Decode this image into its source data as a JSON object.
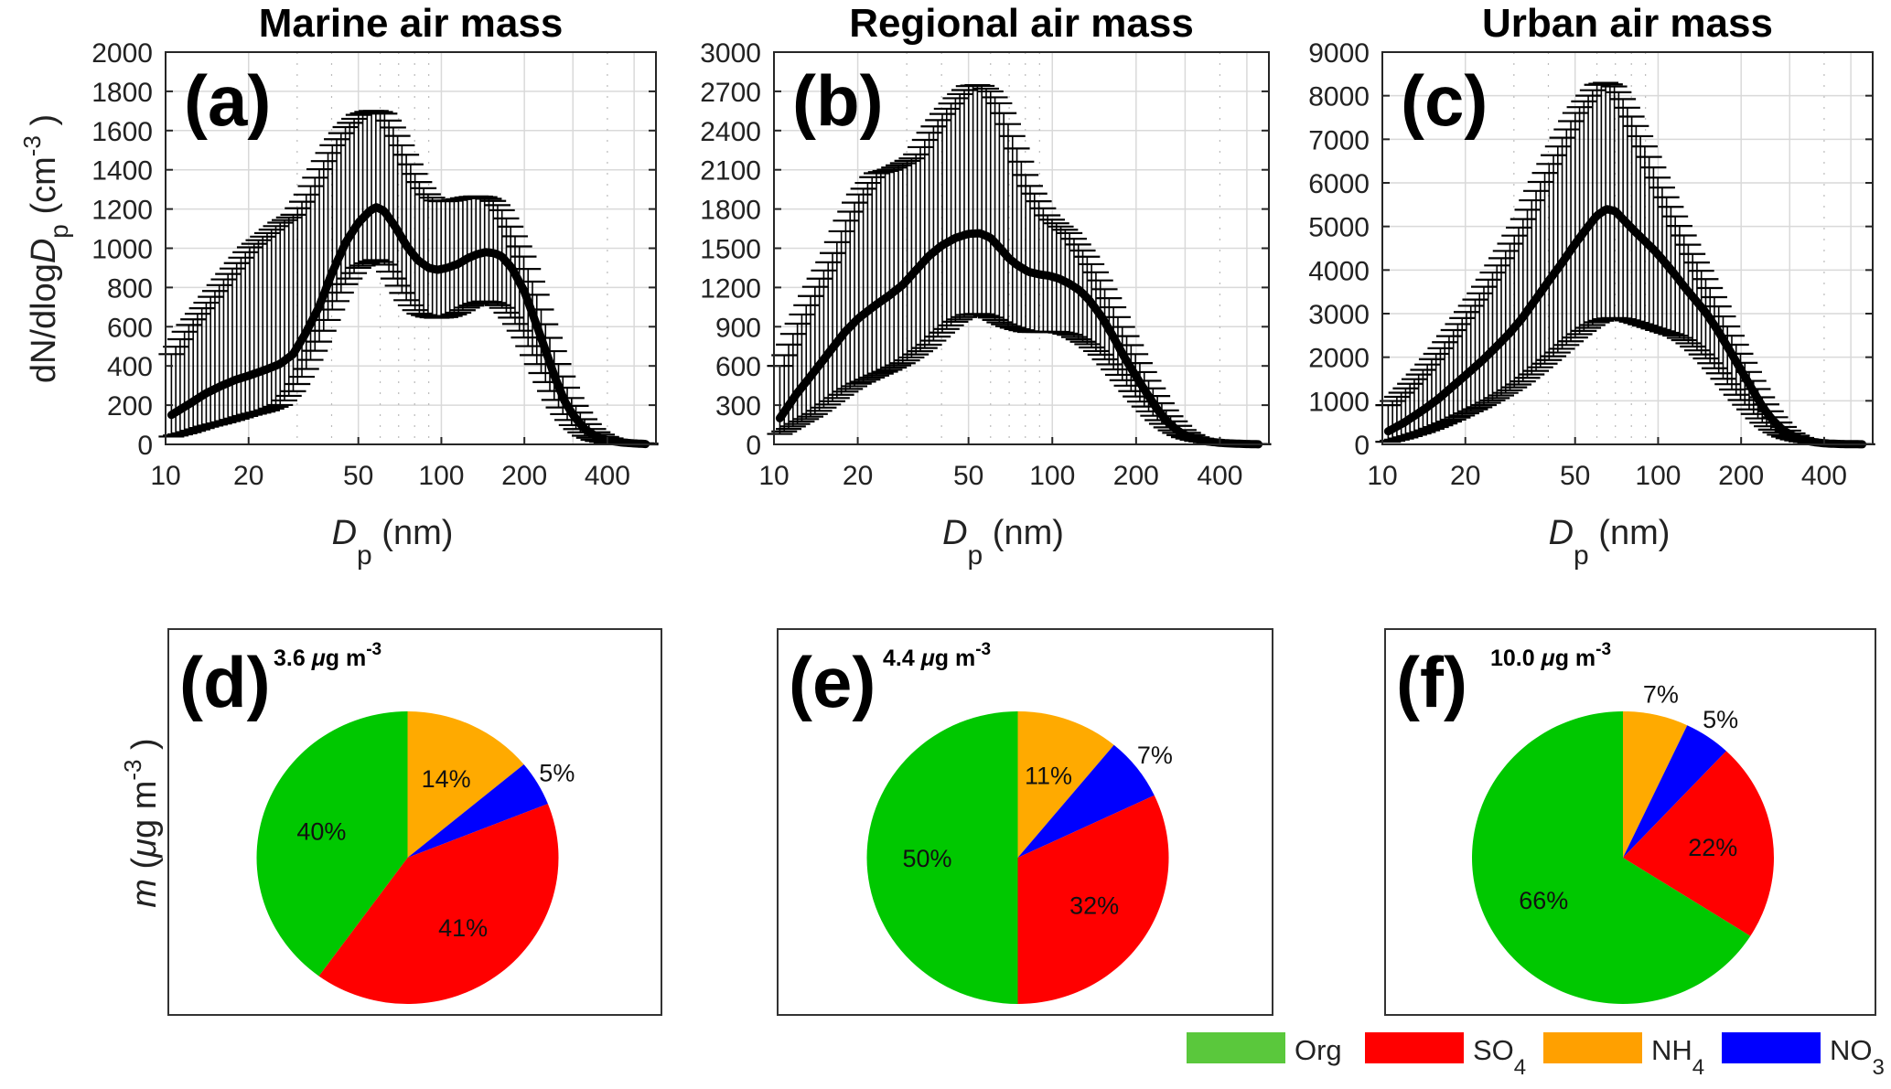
{
  "chart_data": [
    {
      "id": "a",
      "type": "line",
      "title": "Marine air mass",
      "panel_label": "(a)",
      "xlabel": "Dp (nm)",
      "ylabel": "dN/dlogDp (cm-3)",
      "xscale": "log",
      "xlim": [
        10,
        600
      ],
      "ylim": [
        0,
        2000
      ],
      "xticks": [
        10,
        20,
        50,
        100,
        200,
        400
      ],
      "yticks": [
        0,
        200,
        400,
        600,
        800,
        1000,
        1200,
        1400,
        1600,
        1800,
        2000
      ],
      "grid": true,
      "series": [
        {
          "name": "mean",
          "x": [
            10.5,
            12,
            14,
            16,
            18,
            20,
            23,
            26,
            29,
            32,
            36,
            40,
            45,
            50,
            55,
            58,
            62,
            68,
            75,
            82,
            90,
            97,
            105,
            115,
            125,
            135,
            145,
            155,
            165,
            180,
            200,
            220,
            240,
            260,
            280,
            300,
            330,
            360,
            400,
            450,
            500,
            550
          ],
          "y": [
            150,
            200,
            260,
            300,
            330,
            350,
            380,
            410,
            460,
            560,
            700,
            870,
            1030,
            1130,
            1190,
            1210,
            1190,
            1110,
            1010,
            940,
            900,
            890,
            900,
            920,
            950,
            970,
            980,
            975,
            960,
            900,
            780,
            620,
            470,
            330,
            220,
            150,
            80,
            45,
            20,
            10,
            5,
            2
          ]
        },
        {
          "name": "upper",
          "x": [
            10.5,
            12,
            14,
            16,
            18,
            20,
            23,
            26,
            29,
            32,
            36,
            40,
            45,
            50,
            55,
            58,
            62,
            68,
            75,
            82,
            90,
            97,
            105,
            115,
            125,
            135,
            145,
            155,
            165,
            180,
            200,
            220,
            240,
            260,
            280,
            300,
            330,
            360,
            400,
            450,
            500,
            550
          ],
          "y": [
            460,
            600,
            720,
            830,
            920,
            1000,
            1070,
            1130,
            1170,
            1260,
            1400,
            1520,
            1620,
            1680,
            1700,
            1700,
            1690,
            1600,
            1470,
            1350,
            1270,
            1240,
            1240,
            1250,
            1260,
            1265,
            1260,
            1240,
            1200,
            1100,
            950,
            780,
            600,
            450,
            320,
            220,
            130,
            70,
            35,
            15,
            8,
            4
          ]
        },
        {
          "name": "lower",
          "x": [
            10.5,
            12,
            14,
            16,
            18,
            20,
            23,
            26,
            29,
            32,
            36,
            40,
            45,
            50,
            55,
            58,
            62,
            68,
            75,
            82,
            90,
            97,
            105,
            115,
            125,
            135,
            145,
            155,
            165,
            180,
            200,
            220,
            240,
            260,
            280,
            300,
            330,
            360,
            400,
            450,
            500,
            550
          ],
          "y": [
            40,
            60,
            90,
            110,
            130,
            150,
            170,
            200,
            270,
            370,
            520,
            680,
            820,
            900,
            930,
            940,
            920,
            830,
            730,
            670,
            650,
            645,
            650,
            670,
            700,
            720,
            730,
            720,
            700,
            640,
            540,
            420,
            310,
            210,
            140,
            90,
            45,
            20,
            8,
            3,
            1,
            0
          ]
        }
      ]
    },
    {
      "id": "b",
      "type": "line",
      "title": "Regional air mass",
      "panel_label": "(b)",
      "xlabel": "Dp (nm)",
      "ylabel": "",
      "xscale": "log",
      "xlim": [
        10,
        600
      ],
      "ylim": [
        0,
        3000
      ],
      "xticks": [
        10,
        20,
        50,
        100,
        200,
        400
      ],
      "yticks": [
        0,
        300,
        600,
        900,
        1200,
        1500,
        1800,
        2100,
        2400,
        2700,
        3000
      ],
      "grid": true,
      "series": [
        {
          "name": "mean",
          "x": [
            10.5,
            12,
            14,
            16,
            18,
            20,
            23,
            26,
            29,
            32,
            36,
            40,
            45,
            50,
            55,
            60,
            65,
            70,
            75,
            82,
            90,
            97,
            105,
            115,
            125,
            135,
            150,
            165,
            180,
            200,
            220,
            240,
            260,
            280,
            300,
            330,
            360,
            400,
            450,
            500,
            550
          ],
          "y": [
            200,
            380,
            560,
            720,
            860,
            960,
            1060,
            1140,
            1220,
            1320,
            1440,
            1520,
            1580,
            1610,
            1615,
            1580,
            1500,
            1420,
            1370,
            1320,
            1300,
            1290,
            1270,
            1230,
            1180,
            1110,
            980,
            830,
            680,
            520,
            380,
            260,
            170,
            110,
            70,
            40,
            22,
            12,
            6,
            3,
            1
          ]
        },
        {
          "name": "upper",
          "x": [
            10.5,
            12,
            14,
            16,
            18,
            20,
            23,
            26,
            29,
            32,
            36,
            40,
            45,
            50,
            55,
            60,
            65,
            70,
            75,
            82,
            90,
            97,
            105,
            115,
            125,
            135,
            150,
            165,
            180,
            200,
            220,
            240,
            260,
            280,
            300,
            330,
            360,
            400,
            450,
            500,
            550
          ],
          "y": [
            600,
            900,
            1200,
            1430,
            1700,
            1900,
            2070,
            2100,
            2150,
            2200,
            2380,
            2520,
            2650,
            2740,
            2750,
            2700,
            2600,
            2430,
            2250,
            2000,
            1850,
            1740,
            1680,
            1620,
            1520,
            1420,
            1240,
            1060,
            880,
            680,
            500,
            360,
            240,
            160,
            100,
            55,
            30,
            15,
            7,
            3,
            1
          ]
        },
        {
          "name": "lower",
          "x": [
            10.5,
            12,
            14,
            16,
            18,
            20,
            23,
            26,
            29,
            32,
            36,
            40,
            45,
            50,
            55,
            60,
            65,
            70,
            75,
            82,
            90,
            97,
            105,
            115,
            125,
            135,
            150,
            165,
            180,
            200,
            220,
            240,
            260,
            280,
            300,
            330,
            360,
            400,
            450,
            500,
            550
          ],
          "y": [
            80,
            150,
            230,
            320,
            400,
            460,
            520,
            570,
            620,
            680,
            760,
            850,
            940,
            990,
            1000,
            970,
            930,
            900,
            880,
            860,
            860,
            860,
            860,
            840,
            800,
            760,
            680,
            580,
            480,
            360,
            260,
            180,
            120,
            80,
            50,
            28,
            15,
            8,
            4,
            2,
            1
          ]
        }
      ]
    },
    {
      "id": "c",
      "type": "line",
      "title": "Urban air mass",
      "panel_label": "(c)",
      "xlabel": "Dp (nm)",
      "ylabel": "",
      "xscale": "log",
      "xlim": [
        10,
        600
      ],
      "ylim": [
        0,
        9000
      ],
      "xticks": [
        10,
        20,
        50,
        100,
        200,
        400
      ],
      "yticks": [
        0,
        1000,
        2000,
        3000,
        4000,
        5000,
        6000,
        7000,
        8000,
        9000
      ],
      "grid": true,
      "series": [
        {
          "name": "mean",
          "x": [
            10.5,
            12,
            14,
            16,
            18,
            20,
            23,
            26,
            29,
            32,
            36,
            40,
            45,
            50,
            55,
            60,
            65,
            70,
            75,
            82,
            90,
            97,
            105,
            115,
            125,
            135,
            150,
            165,
            180,
            200,
            220,
            240,
            260,
            280,
            300,
            330,
            360,
            400,
            450,
            500,
            550
          ],
          "y": [
            300,
            500,
            780,
            1050,
            1330,
            1580,
            1920,
            2250,
            2560,
            2880,
            3330,
            3740,
            4180,
            4600,
            4950,
            5250,
            5400,
            5350,
            5150,
            4900,
            4650,
            4450,
            4200,
            3900,
            3600,
            3350,
            3000,
            2600,
            2200,
            1700,
            1250,
            850,
            560,
            360,
            230,
            120,
            60,
            25,
            10,
            5,
            2
          ]
        },
        {
          "name": "upper",
          "x": [
            10.5,
            12,
            14,
            16,
            18,
            20,
            23,
            26,
            29,
            32,
            36,
            40,
            45,
            50,
            55,
            60,
            65,
            70,
            75,
            82,
            90,
            97,
            105,
            115,
            125,
            135,
            150,
            165,
            180,
            200,
            220,
            240,
            260,
            280,
            300,
            330,
            360,
            400,
            450,
            500,
            550
          ],
          "y": [
            900,
            1250,
            1700,
            2150,
            2600,
            3000,
            3550,
            4100,
            4600,
            5100,
            5800,
            6400,
            7050,
            7600,
            7950,
            8250,
            8300,
            8200,
            7900,
            7400,
            6800,
            6300,
            5800,
            5250,
            4750,
            4300,
            3750,
            3200,
            2650,
            2050,
            1500,
            1050,
            700,
            450,
            290,
            150,
            75,
            30,
            12,
            5,
            2
          ]
        },
        {
          "name": "lower",
          "x": [
            10.5,
            12,
            14,
            16,
            18,
            20,
            23,
            26,
            29,
            32,
            36,
            40,
            45,
            50,
            55,
            60,
            65,
            70,
            75,
            82,
            90,
            97,
            105,
            115,
            125,
            135,
            150,
            165,
            180,
            200,
            220,
            240,
            260,
            280,
            300,
            330,
            360,
            400,
            450,
            500,
            550
          ],
          "y": [
            60,
            150,
            280,
            420,
            560,
            700,
            880,
            1060,
            1240,
            1420,
            1680,
            1920,
            2200,
            2450,
            2650,
            2800,
            2880,
            2900,
            2870,
            2800,
            2720,
            2650,
            2580,
            2500,
            2380,
            2220,
            1950,
            1650,
            1350,
            1000,
            720,
            480,
            310,
            200,
            130,
            70,
            35,
            15,
            6,
            2,
            1
          ]
        }
      ]
    },
    {
      "id": "d",
      "type": "pie",
      "panel_label": "(d)",
      "total": "3.6 μg m-3",
      "total_value": 3.6,
      "ylabel": "m (μg m-3)",
      "start": "top",
      "direction": "clockwise",
      "slices": [
        {
          "name": "NH4",
          "value": 14,
          "label": "14%"
        },
        {
          "name": "NO3",
          "value": 5,
          "label": "5%"
        },
        {
          "name": "SO4",
          "value": 41,
          "label": "41%"
        },
        {
          "name": "Org",
          "value": 40,
          "label": "40%"
        }
      ]
    },
    {
      "id": "e",
      "type": "pie",
      "panel_label": "(e)",
      "total": "4.4 μg m-3",
      "total_value": 4.4,
      "start": "top",
      "direction": "clockwise",
      "slices": [
        {
          "name": "NH4",
          "value": 11,
          "label": "11%"
        },
        {
          "name": "NO3",
          "value": 7,
          "label": "7%"
        },
        {
          "name": "SO4",
          "value": 32,
          "label": "32%"
        },
        {
          "name": "Org",
          "value": 50,
          "label": "50%"
        }
      ]
    },
    {
      "id": "f",
      "type": "pie",
      "panel_label": "(f)",
      "total": "10.0 μg m-3",
      "total_value": 10.0,
      "start": "top",
      "direction": "clockwise",
      "slices": [
        {
          "name": "NH4",
          "value": 7,
          "label": "7%"
        },
        {
          "name": "NO3",
          "value": 5,
          "label": "5%"
        },
        {
          "name": "SO4",
          "value": 22,
          "label": "22%"
        },
        {
          "name": "Org",
          "value": 66,
          "label": "66%"
        }
      ]
    }
  ],
  "labels": {
    "ylabel_top": {
      "pre": "dN/dlog",
      "italic1": "N",
      "D": "D",
      "sub": "p",
      "unit": " (cm",
      "sup": "-3",
      "close": " )"
    },
    "xlabel": {
      "D": "D",
      "sub": "p",
      "unit": " (nm)"
    },
    "ylabel_bottom": {
      "m": "m",
      "unit": " (",
      "mu": "μ",
      "g": "g m",
      "sup": "-3",
      "close": " )"
    },
    "pie_unit": {
      "mu": "μ",
      "g": "g m",
      "sup": "-3"
    }
  },
  "legend": {
    "items": [
      {
        "name": "Org",
        "base": "Org",
        "sub": "",
        "color": "#5ac83c"
      },
      {
        "name": "SO4",
        "base": "SO",
        "sub": "4",
        "color": "#ff0000"
      },
      {
        "name": "NH4",
        "base": "NH",
        "sub": "4",
        "color": "#ffa000"
      },
      {
        "name": "NO3",
        "base": "NO",
        "sub": "3",
        "color": "#0000ff"
      }
    ]
  },
  "colors": {
    "Org": "#00c800",
    "SO4": "#ff0000",
    "NH4": "#ffaa00",
    "NO3": "#0000ff",
    "line": "#000000",
    "grid": "#d9d9d9"
  }
}
